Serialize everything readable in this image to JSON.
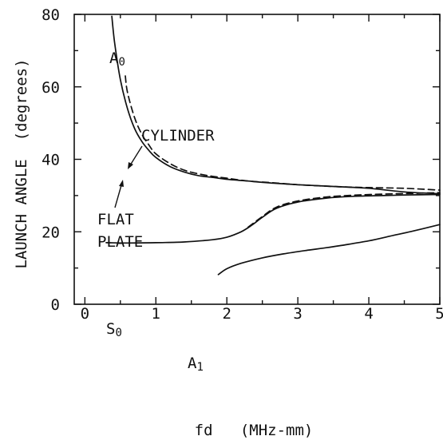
{
  "chart_data": {
    "type": "line",
    "title": "",
    "xlabel": "fd   (MHz-mm)",
    "ylabel": "LAUNCH ANGLE  (degrees)",
    "xlim": [
      -0.15,
      5
    ],
    "ylim": [
      0,
      80
    ],
    "x_ticks": [
      0,
      1,
      2,
      3,
      4,
      5
    ],
    "x_tick_labels": [
      "0",
      "1",
      "2",
      "3",
      "4",
      "5"
    ],
    "y_ticks": [
      0,
      20,
      40,
      60,
      80
    ],
    "y_tick_labels": [
      "0",
      "20",
      "40",
      "60",
      "80"
    ],
    "grid": false,
    "legend": "none",
    "annotations": {
      "a0": "A",
      "a0_sub": "0",
      "cylinder": "CYLINDER",
      "flat_line1": "FLAT",
      "flat_line2": "PLATE",
      "s0": "S",
      "s0_sub": "0",
      "a1": "A",
      "a1_sub": "1"
    },
    "series": [
      {
        "label": "A0 flat plate",
        "style": "solid",
        "x": [
          0.38,
          0.42,
          0.5,
          0.6,
          0.7,
          0.8,
          0.9,
          1.0,
          1.2,
          1.4,
          1.6,
          1.8,
          2.0,
          2.3,
          2.6,
          3.0,
          3.5,
          4.0,
          4.5,
          5.0
        ],
        "y": [
          79.5,
          72,
          62,
          54,
          48.5,
          45,
          42.5,
          40.5,
          38,
          36.5,
          35.5,
          35,
          34.5,
          34,
          33.5,
          33,
          32.5,
          32,
          31,
          30.5
        ]
      },
      {
        "label": "A0 cylinder",
        "style": "dashed",
        "x": [
          0.57,
          0.6,
          0.7,
          0.8,
          0.9,
          1.0,
          1.2,
          1.4,
          1.6,
          1.8,
          2.0,
          2.3,
          2.6,
          3.0,
          3.5,
          4.0,
          4.5,
          5.0
        ],
        "y": [
          63,
          58.5,
          51.5,
          47,
          44,
          41.5,
          38.8,
          37,
          36,
          35.3,
          34.8,
          34,
          33.6,
          33,
          32.5,
          32.2,
          32,
          31.5
        ]
      },
      {
        "label": "S0 flat plate",
        "style": "solid",
        "x": [
          0.3,
          0.6,
          1.0,
          1.4,
          1.8,
          2.0,
          2.2,
          2.35,
          2.5,
          2.7,
          3.0,
          3.4,
          3.8,
          4.2,
          4.6,
          5.0
        ],
        "y": [
          17,
          16.9,
          17,
          17.2,
          17.8,
          18.5,
          20,
          21.8,
          24,
          26.5,
          28.2,
          29.3,
          29.8,
          30,
          30.2,
          30.3
        ]
      },
      {
        "label": "S0 cylinder",
        "style": "dashed",
        "x": [
          2.3,
          2.5,
          2.7,
          3.0,
          3.4,
          3.8,
          4.2,
          4.6,
          5.0
        ],
        "y": [
          21.3,
          24.2,
          26.8,
          28.5,
          29.6,
          30.1,
          30.4,
          30.6,
          30.8
        ]
      },
      {
        "label": "A1",
        "style": "solid",
        "x": [
          1.88,
          2.0,
          2.2,
          2.5,
          2.8,
          3.1,
          3.4,
          3.7,
          4.0,
          4.3,
          4.6,
          5.0
        ],
        "y": [
          8.2,
          9.8,
          11.3,
          12.8,
          13.9,
          14.8,
          15.6,
          16.5,
          17.5,
          18.8,
          20.1,
          22
        ]
      }
    ]
  }
}
